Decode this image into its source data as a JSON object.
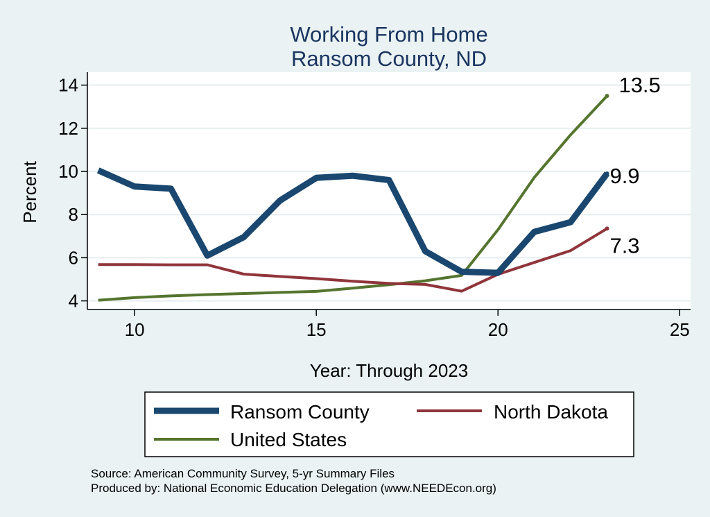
{
  "chart_data": {
    "type": "line",
    "title": [
      "Working From Home",
      "Ransom County, ND"
    ],
    "xlabel": "Year: Through 2023",
    "ylabel": "Percent",
    "xlim": [
      8.7,
      25.3
    ],
    "ylim": [
      3.6,
      14.6
    ],
    "xticks": [
      10,
      15,
      20,
      25
    ],
    "yticks": [
      4,
      6,
      8,
      10,
      12,
      14
    ],
    "grid": true,
    "legend_position": "bottom",
    "series": [
      {
        "name": "Ransom County",
        "color": "#1a476f",
        "x": [
          9,
          10,
          11,
          12,
          13,
          14,
          15,
          16,
          17,
          18,
          19,
          20,
          21,
          22,
          23
        ],
        "y": [
          10.05,
          9.3,
          9.2,
          6.1,
          6.95,
          8.65,
          9.7,
          9.8,
          9.6,
          6.3,
          5.35,
          5.3,
          7.2,
          7.65,
          9.9
        ],
        "end_label": "9.9"
      },
      {
        "name": "North Dakota",
        "color": "#90353b",
        "x": [
          9,
          10,
          11,
          12,
          13,
          14,
          15,
          16,
          17,
          18,
          19,
          20,
          21,
          22,
          23
        ],
        "y": [
          5.68,
          5.68,
          5.67,
          5.67,
          5.24,
          5.13,
          5.03,
          4.91,
          4.81,
          4.76,
          4.45,
          5.23,
          5.78,
          6.33,
          7.35
        ],
        "end_label": "7.3"
      },
      {
        "name": "United States",
        "color": "#55752f",
        "x": [
          9,
          10,
          11,
          12,
          13,
          14,
          15,
          16,
          17,
          18,
          19,
          20,
          21,
          22,
          23
        ],
        "y": [
          4.03,
          4.15,
          4.23,
          4.29,
          4.34,
          4.39,
          4.44,
          4.59,
          4.75,
          4.93,
          5.18,
          7.3,
          9.72,
          11.7,
          13.5
        ],
        "end_label": "13.5"
      }
    ],
    "notes": [
      "Source: American Community Survey, 5-yr Summary Files",
      "Produced by: National Economic Education Delegation (www.NEEDEcon.org)"
    ]
  }
}
